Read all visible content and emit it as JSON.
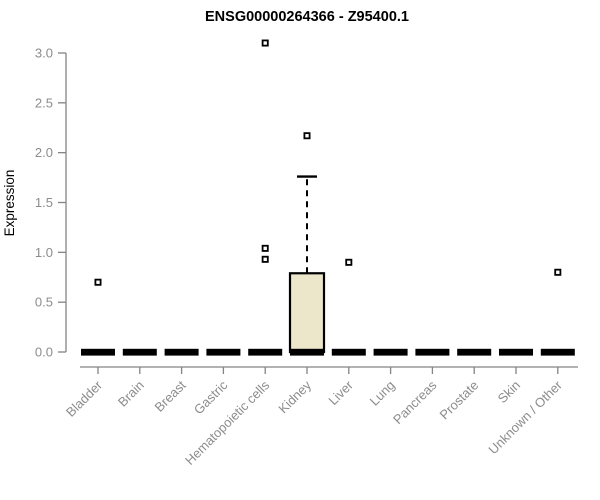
{
  "chart_data": {
    "type": "boxplot",
    "title": "ENSG00000264366 - Z95400.1",
    "xlabel": "",
    "ylabel": "Expression",
    "ylim": [
      0,
      3.2
    ],
    "yticks": [
      0.0,
      0.5,
      1.0,
      1.5,
      2.0,
      2.5,
      3.0
    ],
    "grid": false,
    "legend": "none",
    "categories": [
      "Bladder",
      "Brain",
      "Breast",
      "Gastric",
      "Hematopoietic cells",
      "Kidney",
      "Liver",
      "Lung",
      "Pancreas",
      "Prostate",
      "Skin",
      "Unknown / Other"
    ],
    "series": [
      {
        "name": "Bladder",
        "median": 0,
        "q1": 0,
        "q3": 0,
        "whisker_low": 0,
        "whisker_high": 0,
        "outliers": [
          0.7
        ]
      },
      {
        "name": "Brain",
        "median": 0,
        "q1": 0,
        "q3": 0,
        "whisker_low": 0,
        "whisker_high": 0,
        "outliers": []
      },
      {
        "name": "Breast",
        "median": 0,
        "q1": 0,
        "q3": 0,
        "whisker_low": 0,
        "whisker_high": 0,
        "outliers": []
      },
      {
        "name": "Gastric",
        "median": 0,
        "q1": 0,
        "q3": 0,
        "whisker_low": 0,
        "whisker_high": 0,
        "outliers": []
      },
      {
        "name": "Hematopoietic cells",
        "median": 0,
        "q1": 0,
        "q3": 0,
        "whisker_low": 0,
        "whisker_high": 0,
        "outliers": [
          3.1,
          1.04,
          0.93
        ]
      },
      {
        "name": "Kidney",
        "median": 0,
        "q1": 0,
        "q3": 0.79,
        "whisker_low": 0,
        "whisker_high": 1.76,
        "outliers": [
          2.17
        ]
      },
      {
        "name": "Liver",
        "median": 0,
        "q1": 0,
        "q3": 0,
        "whisker_low": 0,
        "whisker_high": 0,
        "outliers": [
          0.9
        ]
      },
      {
        "name": "Lung",
        "median": 0,
        "q1": 0,
        "q3": 0,
        "whisker_low": 0,
        "whisker_high": 0,
        "outliers": []
      },
      {
        "name": "Pancreas",
        "median": 0,
        "q1": 0,
        "q3": 0,
        "whisker_low": 0,
        "whisker_high": 0,
        "outliers": []
      },
      {
        "name": "Prostate",
        "median": 0,
        "q1": 0,
        "q3": 0,
        "whisker_low": 0,
        "whisker_high": 0,
        "outliers": []
      },
      {
        "name": "Skin",
        "median": 0,
        "q1": 0,
        "q3": 0,
        "whisker_low": 0,
        "whisker_high": 0,
        "outliers": []
      },
      {
        "name": "Unknown / Other",
        "median": 0,
        "q1": 0,
        "q3": 0,
        "whisker_low": 0,
        "whisker_high": 0,
        "outliers": [
          0.8
        ]
      }
    ],
    "colors": {
      "box_fill": "#ece7cb",
      "box_stroke": "#000000",
      "median": "#000000",
      "whisker": "#000000",
      "outlier_stroke": "#000000",
      "axis": "#848484",
      "tick_text": "#8c8c8c",
      "title_text": "#000000",
      "background": "#ffffff"
    }
  }
}
